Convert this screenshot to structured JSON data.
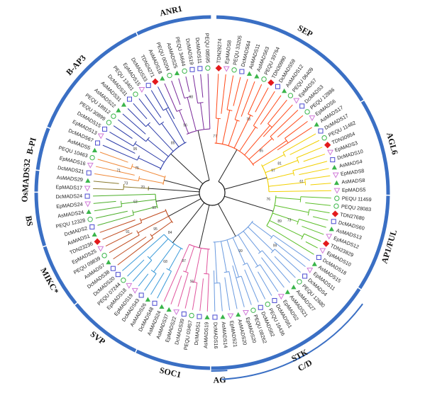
{
  "tree": {
    "clades": [
      {
        "id": "sep",
        "color": "#ff4a1a",
        "leaves": [
          {
            "label": "TDN29274",
            "marker": "diamond-red"
          },
          {
            "label": "EpMADS8",
            "marker": "triangle-pink"
          },
          {
            "label": "PEQU 33205",
            "marker": "circle-green"
          },
          {
            "label": "DcMADS64",
            "marker": "square-blue"
          },
          {
            "label": "AsMADS11",
            "marker": "triangle-green"
          },
          {
            "label": "AsMADS63",
            "marker": "triangle-green"
          },
          {
            "label": "PEQU 39764",
            "marker": "circle-green"
          },
          {
            "label": "TDN30990",
            "marker": "diamond-red"
          },
          {
            "label": "DcMADS59",
            "marker": "square-blue"
          },
          {
            "label": "AsMADS12",
            "marker": "triangle-green"
          },
          {
            "label": "PEQU 06409",
            "marker": "circle-green"
          },
          {
            "label": "EpMADS7",
            "marker": "triangle-pink"
          },
          {
            "label": "DcMADS3",
            "marker": "square-blue"
          },
          {
            "label": "PEQU 12886",
            "marker": "circle-green"
          },
          {
            "label": "EpMADS6",
            "marker": "triangle-pink"
          },
          {
            "label": "AsMADS17",
            "marker": "triangle-green"
          }
        ]
      },
      {
        "id": "agl6",
        "color": "#f2d000",
        "leaves": [
          {
            "label": "DcMADS17",
            "marker": "square-blue"
          },
          {
            "label": "PEQU 11482",
            "marker": "circle-green"
          },
          {
            "label": "TDN30954",
            "marker": "diamond-red"
          },
          {
            "label": "EpMADS3",
            "marker": "triangle-pink"
          },
          {
            "label": "DcMADS10",
            "marker": "square-blue"
          },
          {
            "label": "AsMADS4",
            "marker": "triangle-green"
          },
          {
            "label": "EpMADS8",
            "marker": "triangle-pink"
          },
          {
            "label": "AsMADS8",
            "marker": "triangle-green"
          },
          {
            "label": "EpMADS5",
            "marker": "triangle-pink"
          }
        ]
      },
      {
        "id": "ap1",
        "color": "#5cbf2a",
        "leaves": [
          {
            "label": "PEQU 11459",
            "marker": "circle-green"
          },
          {
            "label": "PEQU 28083",
            "marker": "circle-green"
          },
          {
            "label": "TDN27680",
            "marker": "diamond-red"
          },
          {
            "label": "DcMADS60",
            "marker": "square-blue"
          },
          {
            "label": "AsMADS13",
            "marker": "triangle-green"
          },
          {
            "label": "EpMADS12",
            "marker": "triangle-pink"
          },
          {
            "label": "TDN23829",
            "marker": "diamond-red"
          },
          {
            "label": "EpMADS10",
            "marker": "triangle-pink"
          },
          {
            "label": "DcMADS18",
            "marker": "square-blue"
          }
        ]
      },
      {
        "id": "stk",
        "color": "#6b9be0",
        "leaves": [
          {
            "label": "AsMADS15",
            "marker": "triangle-green"
          },
          {
            "label": "EpMADS11",
            "marker": "triangle-pink"
          },
          {
            "label": "DcMADS4",
            "marker": "square-blue"
          },
          {
            "label": "PEQU 12680",
            "marker": "circle-green"
          },
          {
            "label": "AsMADS27",
            "marker": "triangle-green"
          },
          {
            "label": "AsMADS21",
            "marker": "triangle-green"
          },
          {
            "label": "EpMADS2",
            "marker": "triangle-pink"
          },
          {
            "label": "DcMADS61",
            "marker": "square-blue"
          },
          {
            "label": "PEQU 16436",
            "marker": "circle-green"
          },
          {
            "label": "DcMADS62",
            "marker": "square-blue"
          },
          {
            "label": "PEQU 08262",
            "marker": "circle-green"
          },
          {
            "label": "EpMADS20",
            "marker": "triangle-pink"
          },
          {
            "label": "AsMADS20",
            "marker": "triangle-green"
          },
          {
            "label": "EpMADS21",
            "marker": "triangle-pink"
          },
          {
            "label": "AsMADS14",
            "marker": "triangle-green"
          },
          {
            "label": "DcMADS16",
            "marker": "square-blue"
          }
        ]
      },
      {
        "id": "soc1",
        "color": "#e0559e",
        "leaves": [
          {
            "label": "AsMADS19",
            "marker": "triangle-green"
          },
          {
            "label": "DcMADS1",
            "marker": "square-blue"
          },
          {
            "label": "PEQU 03457",
            "marker": "circle-green"
          },
          {
            "label": "DcMADS39",
            "marker": "square-blue"
          },
          {
            "label": "EpMADS22",
            "marker": "triangle-pink"
          },
          {
            "label": "AsMADS37",
            "marker": "triangle-green"
          },
          {
            "label": "AsMADS24",
            "marker": "triangle-green"
          }
        ]
      },
      {
        "id": "svp",
        "color": "#3a9ad9",
        "leaves": [
          {
            "label": "DcMADS48",
            "marker": "square-blue"
          },
          {
            "label": "AsMADS26",
            "marker": "triangle-green"
          },
          {
            "label": "DcMADS43",
            "marker": "square-blue"
          },
          {
            "label": "EpMADS19",
            "marker": "triangle-pink"
          },
          {
            "label": "EpMADS18",
            "marker": "triangle-pink"
          },
          {
            "label": "PEQU 07244",
            "marker": "circle-green"
          },
          {
            "label": "DcMADS20",
            "marker": "square-blue"
          }
        ]
      },
      {
        "id": "mikc",
        "color": "#c04a1e",
        "leaves": [
          {
            "label": "DcMADS38",
            "marker": "square-blue"
          },
          {
            "label": "AsMADS7",
            "marker": "triangle-green"
          },
          {
            "label": "PEQU 09839",
            "marker": "circle-green"
          },
          {
            "label": "EpMADS25",
            "marker": "triangle-pink"
          },
          {
            "label": "TDN23236",
            "marker": "diamond-red"
          },
          {
            "label": "AsMADS1",
            "marker": "triangle-green"
          }
        ]
      },
      {
        "id": "bs",
        "color": "#4caf2a",
        "leaves": [
          {
            "label": "DcMADS2",
            "marker": "square-blue"
          },
          {
            "label": "PEQU 12328",
            "marker": "circle-green"
          },
          {
            "label": "AsMADS24",
            "marker": "triangle-green"
          },
          {
            "label": "EpMADS24",
            "marker": "triangle-pink"
          },
          {
            "label": "DcMADS24",
            "marker": "square-blue"
          }
        ]
      },
      {
        "id": "osmads32",
        "color": "#8a7a2e",
        "leaves": [
          {
            "label": "EpMADS17",
            "marker": "triangle-pink"
          },
          {
            "label": "AsMADS29",
            "marker": "triangle-green"
          }
        ]
      },
      {
        "id": "bpi",
        "color": "#f08a3a",
        "leaves": [
          {
            "label": "DcMADS21",
            "marker": "square-blue"
          },
          {
            "label": "EpMADS16",
            "marker": "triangle-pink"
          },
          {
            "label": "PEQU 10463",
            "marker": "circle-green"
          },
          {
            "label": "AsMADS5",
            "marker": "triangle-green"
          }
        ]
      },
      {
        "id": "bap3",
        "color": "#2a3aa8",
        "leaves": [
          {
            "label": "DcMADS67",
            "marker": "square-blue"
          },
          {
            "label": "EpMADS13",
            "marker": "triangle-pink"
          },
          {
            "label": "DcMADS15",
            "marker": "square-blue"
          },
          {
            "label": "PEQU 30899",
            "marker": "circle-green"
          },
          {
            "label": "PEQU 18912",
            "marker": "circle-green"
          },
          {
            "label": "AsMADS22",
            "marker": "triangle-green"
          },
          {
            "label": "AsMADS31",
            "marker": "triangle-green"
          },
          {
            "label": "DcMADS31",
            "marker": "square-blue"
          },
          {
            "label": "PEQU 13401",
            "marker": "circle-green"
          },
          {
            "label": "EpMADS15",
            "marker": "triangle-pink"
          },
          {
            "label": "DcMADS33",
            "marker": "square-blue"
          },
          {
            "label": "TDN24271",
            "marker": "diamond-red"
          }
        ]
      },
      {
        "id": "anr1",
        "color": "#7a2a9a",
        "leaves": [
          {
            "label": "AsMADS18",
            "marker": "triangle-green"
          },
          {
            "label": "PEQU 00204",
            "marker": "circle-green"
          },
          {
            "label": "AsMADS25",
            "marker": "triangle-green"
          },
          {
            "label": "PEQU 34644",
            "marker": "circle-green"
          },
          {
            "label": "DcMADS19",
            "marker": "square-blue"
          },
          {
            "label": "DcMADS11",
            "marker": "square-blue"
          },
          {
            "label": "PEQU 08595",
            "marker": "circle-green"
          }
        ]
      }
    ],
    "bootstrap_values": [
      "77",
      "97",
      "89",
      "99",
      "91",
      "84",
      "95",
      "63",
      "73",
      "71",
      "85",
      "56",
      "78",
      "61",
      "76",
      "99",
      "87",
      "68",
      "91",
      "93",
      "70",
      "75",
      "95",
      "98",
      "85",
      "81",
      "73"
    ]
  },
  "groups": [
    {
      "label": "SEP"
    },
    {
      "label": "AGL6"
    },
    {
      "label": "AP1/FUL"
    },
    {
      "label": "STK"
    },
    {
      "label": "C/D"
    },
    {
      "label": "AG"
    },
    {
      "label": "SOC1"
    },
    {
      "label": "SVP"
    },
    {
      "label": "MIKC*"
    },
    {
      "label": "BS"
    },
    {
      "label": "OsMADS32"
    },
    {
      "label": "B-PI"
    },
    {
      "label": "B-AP3"
    },
    {
      "label": "ANR1"
    }
  ],
  "colors": {
    "ring": "#3a6fc4",
    "marker_red": "#e31a1c",
    "marker_pink": "#d07ad8",
    "marker_green": "#3ab54a",
    "marker_blue": "#4a4ad0",
    "root": "#111111"
  }
}
